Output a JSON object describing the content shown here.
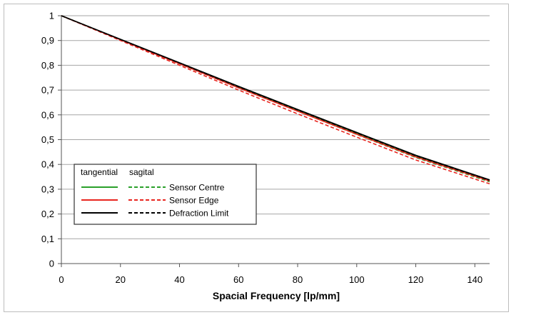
{
  "chart_data": {
    "type": "line",
    "title": "",
    "xlabel": "Spacial Frequency [lp/mm]",
    "ylabel": "",
    "xlim": [
      0,
      145
    ],
    "ylim": [
      0,
      1
    ],
    "x_ticks": [
      0,
      20,
      40,
      60,
      80,
      100,
      120,
      140
    ],
    "x_tick_labels": [
      "0",
      "20",
      "40",
      "60",
      "80",
      "100",
      "120",
      "140"
    ],
    "y_ticks": [
      0,
      0.1,
      0.2,
      0.3,
      0.4,
      0.5,
      0.6,
      0.7,
      0.8,
      0.9,
      1
    ],
    "y_tick_labels": [
      "0",
      "0,1",
      "0,2",
      "0,3",
      "0,4",
      "0,5",
      "0,6",
      "0,7",
      "0,8",
      "0,9",
      "1"
    ],
    "grid": "horizontal",
    "legend": {
      "placement": "bottom-left",
      "header_tangential": "tangential",
      "header_sagital": "sagital",
      "entries": [
        {
          "label": "Sensor Centre",
          "color": "#2aa02a"
        },
        {
          "label": "Sensor Edge",
          "color": "#e8251f"
        },
        {
          "label": "Defraction Limit",
          "color": "#000000"
        }
      ]
    },
    "x": [
      0,
      20,
      40,
      60,
      80,
      100,
      120,
      145
    ],
    "series": [
      {
        "name": "Sensor Centre",
        "style": "solid",
        "color": "#2aa02a",
        "values": [
          1.0,
          0.904,
          0.808,
          0.712,
          0.619,
          0.526,
          0.434,
          0.337
        ]
      },
      {
        "name": "Sensor Centre",
        "style": "dashed",
        "color": "#2aa02a",
        "values": [
          1.0,
          0.903,
          0.806,
          0.709,
          0.615,
          0.521,
          0.428,
          0.33
        ]
      },
      {
        "name": "Sensor Edge",
        "style": "solid",
        "color": "#e8251f",
        "values": [
          1.0,
          0.903,
          0.806,
          0.709,
          0.615,
          0.522,
          0.43,
          0.333
        ]
      },
      {
        "name": "Sensor Edge",
        "style": "dashed",
        "color": "#e8251f",
        "values": [
          1.0,
          0.9,
          0.8,
          0.7,
          0.604,
          0.51,
          0.418,
          0.322
        ]
      },
      {
        "name": "Defraction Limit",
        "style": "solid",
        "color": "#000000",
        "values": [
          1.0,
          0.905,
          0.81,
          0.715,
          0.622,
          0.529,
          0.437,
          0.338
        ]
      },
      {
        "name": "Defraction Limit",
        "style": "dashed",
        "color": "#000000",
        "values": [
          1.0,
          0.904,
          0.809,
          0.713,
          0.62,
          0.527,
          0.435,
          0.336
        ]
      }
    ]
  }
}
